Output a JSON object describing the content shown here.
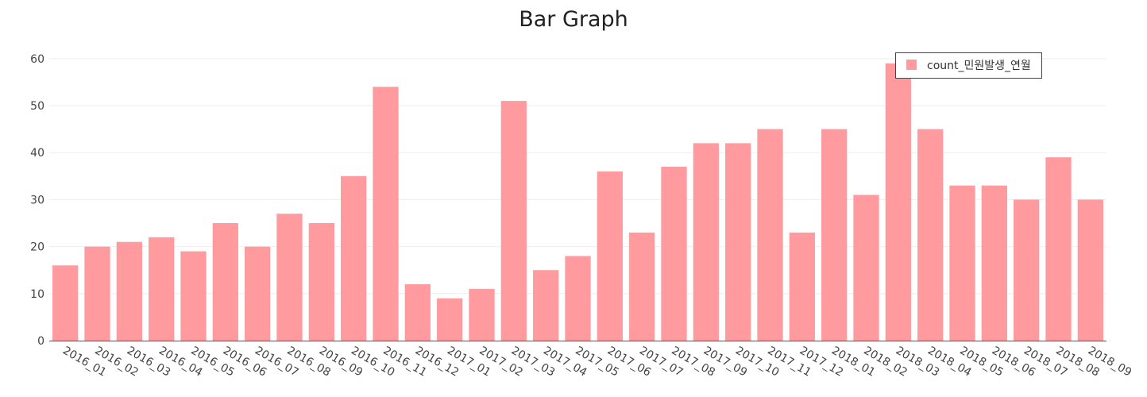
{
  "chart_data": {
    "type": "bar",
    "title": "Bar Graph",
    "xlabel": "",
    "ylabel": "",
    "categories": [
      "2016_01",
      "2016_02",
      "2016_03",
      "2016_04",
      "2016_05",
      "2016_06",
      "2016_07",
      "2016_08",
      "2016_09",
      "2016_10",
      "2016_11",
      "2016_12",
      "2017_01",
      "2017_02",
      "2017_03",
      "2017_04",
      "2017_05",
      "2017_06",
      "2017_07",
      "2017_08",
      "2017_09",
      "2017_10",
      "2017_11",
      "2017_12",
      "2018_01",
      "2018_02",
      "2018_03",
      "2018_04",
      "2018_05",
      "2018_06",
      "2018_07",
      "2018_08",
      "2018_09"
    ],
    "series": [
      {
        "name": "count_민원발생_연월",
        "values": [
          16,
          20,
          21,
          22,
          19,
          25,
          20,
          27,
          25,
          35,
          54,
          12,
          9,
          11,
          51,
          15,
          18,
          36,
          23,
          37,
          42,
          42,
          45,
          23,
          45,
          31,
          59,
          45,
          33,
          33,
          30,
          39,
          30
        ]
      }
    ],
    "ylim": [
      0,
      62
    ],
    "yticks": [
      0,
      10,
      20,
      30,
      40,
      50,
      60
    ],
    "grid": true,
    "legend": "top-right",
    "colors": {
      "bar": "#ff9a9e",
      "grid": "#eeeeee",
      "axis": "#555555",
      "text": "#444444"
    }
  }
}
